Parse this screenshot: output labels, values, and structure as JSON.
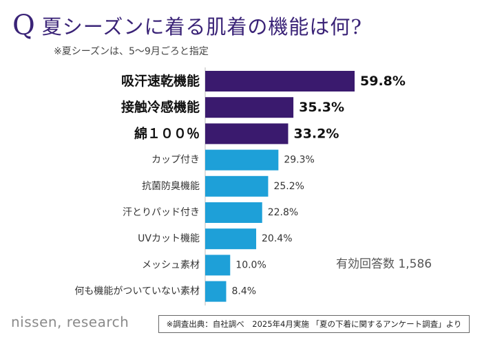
{
  "header": {
    "q_mark": "Q",
    "title": "夏シーズンに着る肌着の機能は何?",
    "subtitle": "※夏シーズンは、5〜9月ごろと指定"
  },
  "chart_data": {
    "type": "bar",
    "orientation": "horizontal",
    "categories": [
      "吸汗速乾機能",
      "接触冷感機能",
      "綿１００％",
      "カップ付き",
      "抗菌防臭機能",
      "汗とりパッド付き",
      "UVカット機能",
      "メッシュ素材",
      "何も機能がついていない素材"
    ],
    "values": [
      59.8,
      35.3,
      33.2,
      29.3,
      25.2,
      22.8,
      20.4,
      10.0,
      8.4
    ],
    "value_labels": [
      "59.8%",
      "35.3%",
      "33.2%",
      "29.3%",
      "25.2%",
      "22.8%",
      "20.4%",
      "10.0%",
      "8.4%"
    ],
    "highlight_top": 3,
    "colors": {
      "highlight": "#3a1a6e",
      "normal": "#1ea0d8",
      "axis": "#bbbbbb"
    }
  },
  "total_respondents": "有効回答数 1,586",
  "brand": "nissen, research",
  "source": "※調査出典：自社調べ　2025年4月実施 「夏の下着に関するアンケート調査」より"
}
